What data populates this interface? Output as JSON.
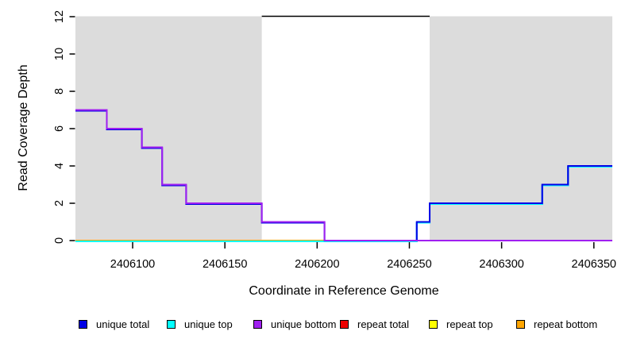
{
  "page": {
    "background": "#ffffff"
  },
  "chart_data": {
    "type": "line",
    "subtype": "step-after",
    "title": "",
    "xlabel": "Coordinate in Reference Genome",
    "ylabel": "Read Coverage Depth",
    "xlim": [
      2406069,
      2406360
    ],
    "ylim": [
      0,
      12
    ],
    "x_ticks": [
      2406100,
      2406150,
      2406200,
      2406250,
      2406300,
      2406350
    ],
    "y_ticks": [
      0,
      2,
      4,
      6,
      8,
      10,
      12
    ],
    "grid": false,
    "legend_position": "bottom",
    "shade_color": "#dcdcdc",
    "shaded_x_regions": [
      [
        2406069,
        2406170
      ],
      [
        2406261,
        2406360
      ]
    ],
    "top_boundary_line": {
      "y": 12,
      "x_from": 2406170,
      "x_to": 2406261,
      "color": "#000000"
    },
    "series": [
      {
        "name": "unique total",
        "color": "#0000e6",
        "steps": [
          [
            2406069,
            7
          ],
          [
            2406086,
            6
          ],
          [
            2406105,
            5
          ],
          [
            2406116,
            3
          ],
          [
            2406129,
            2
          ],
          [
            2406170,
            1
          ],
          [
            2406204,
            0
          ],
          [
            2406254,
            1
          ],
          [
            2406261,
            2
          ],
          [
            2406322,
            3
          ],
          [
            2406336,
            4
          ],
          [
            2406360,
            4
          ]
        ]
      },
      {
        "name": "unique top",
        "color": "#00ffff",
        "steps": [
          [
            2406069,
            0
          ],
          [
            2406254,
            1
          ],
          [
            2406261,
            2
          ],
          [
            2406322,
            3
          ],
          [
            2406336,
            4
          ],
          [
            2406360,
            4
          ]
        ]
      },
      {
        "name": "unique bottom",
        "color": "#a020f0",
        "steps": [
          [
            2406069,
            7
          ],
          [
            2406086,
            6
          ],
          [
            2406105,
            5
          ],
          [
            2406116,
            3
          ],
          [
            2406129,
            2
          ],
          [
            2406170,
            1
          ],
          [
            2406204,
            0
          ],
          [
            2406360,
            0
          ]
        ]
      },
      {
        "name": "repeat total",
        "color": "#ee0000",
        "steps": [
          [
            2406069,
            0
          ],
          [
            2406360,
            0
          ]
        ]
      },
      {
        "name": "repeat top",
        "color": "#ffff00",
        "steps": [
          [
            2406069,
            0
          ],
          [
            2406360,
            0
          ]
        ]
      },
      {
        "name": "repeat bottom",
        "color": "#ffa500",
        "steps": [
          [
            2406069,
            0
          ],
          [
            2406360,
            0
          ]
        ]
      }
    ]
  }
}
